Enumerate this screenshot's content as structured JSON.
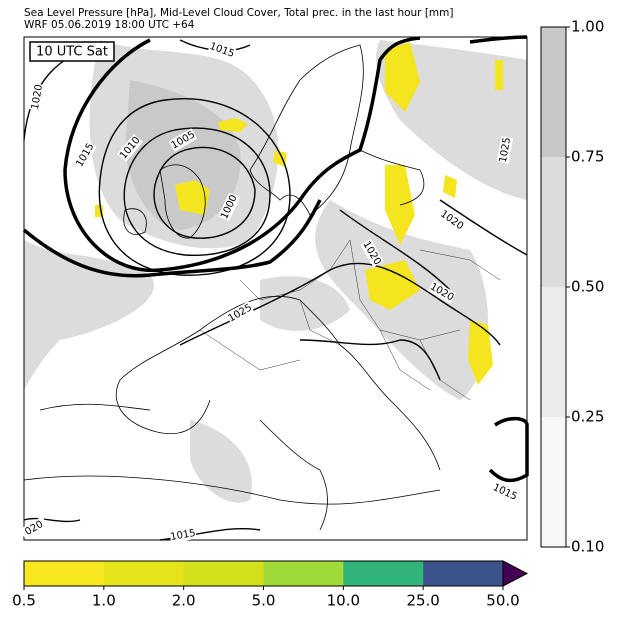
{
  "header": {
    "line1": "Sea Level Pressure [hPa], Mid-Level Cloud Cover, Total prec. in the last hour [mm]",
    "line2": "WRF 05.06.2019 18:00 UTC +64"
  },
  "map": {
    "time_label": "10 UTC Sat",
    "isobar_labels": [
      1015,
      1020,
      1015,
      1010,
      1005,
      1000,
      1025,
      1020,
      1020,
      1020,
      1025,
      1015,
      1015,
      "020"
    ]
  },
  "cloud_colorbar": {
    "colors": [
      "#f7f7f7",
      "#ececec",
      "#dcdcdc",
      "#c8c8c8"
    ],
    "ticks": [
      {
        "value": 0.1,
        "label": "0.10"
      },
      {
        "value": 0.25,
        "label": "0.25"
      },
      {
        "value": 0.5,
        "label": "0.50"
      },
      {
        "value": 0.75,
        "label": "0.75"
      },
      {
        "value": 1,
        "label": "1.00"
      }
    ]
  },
  "precip_colorbar": {
    "colors": [
      "#f8e621",
      "#e5e41a",
      "#d2e11b",
      "#a0da39",
      "#30b47a",
      "#3b528b"
    ],
    "extend_color": "#440154",
    "ticks": [
      0.5,
      {
        "value": 1,
        "label": "1.0"
      },
      {
        "value": 2,
        "label": "2.0"
      },
      {
        "value": 5,
        "label": "5.0"
      },
      {
        "value": 10,
        "label": "10.0"
      },
      {
        "value": 25,
        "label": "25.0"
      },
      {
        "value": 50,
        "label": "50.0"
      }
    ]
  }
}
